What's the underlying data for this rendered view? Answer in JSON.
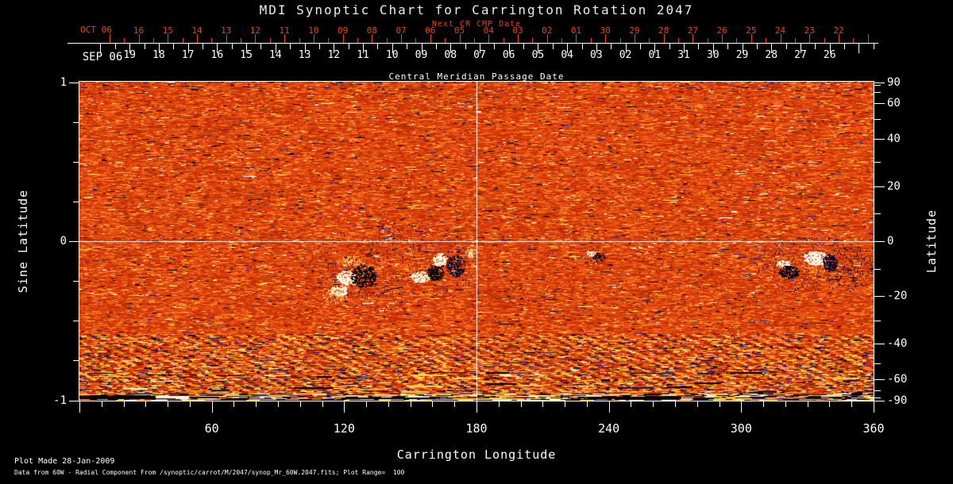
{
  "title": "MDI Synoptic Chart for Carrington Rotation 2047",
  "top_axis": {
    "next_cr_label": "Next CR CMP Date",
    "next_cr_month": "OCT 06",
    "next_cr_days": [
      "16",
      "15",
      "14",
      "13",
      "12",
      "11",
      "10",
      "09",
      "08",
      "07",
      "06",
      "05",
      "04",
      "03",
      "02",
      "01",
      "30",
      "29",
      "28",
      "27",
      "26",
      "25",
      "24",
      "23",
      "22"
    ],
    "cmp_month": "SEP 06",
    "cmp_days": [
      "19",
      "18",
      "17",
      "16",
      "15",
      "14",
      "13",
      "12",
      "11",
      "10",
      "09",
      "08",
      "07",
      "06",
      "05",
      "04",
      "03",
      "02",
      "01",
      "31",
      "30",
      "29",
      "28",
      "27",
      "26"
    ],
    "cmp_axis_label": "Central Meridian Passage Date"
  },
  "left_axis": {
    "label": "Sine Latitude",
    "ticks": [
      "1",
      "0",
      "-1"
    ]
  },
  "right_axis": {
    "label": "Latitude",
    "ticks": [
      "90",
      "60",
      "40",
      "20",
      "0",
      "-20",
      "-40",
      "-60",
      "-90"
    ]
  },
  "bottom_axis": {
    "label": "Carrington Longitude",
    "ticks": [
      "60",
      "120",
      "180",
      "240",
      "300",
      "360"
    ]
  },
  "footer": {
    "line1": "Plot Made 28-Jan-2009",
    "line2": "Data from 60W - Radial Component From /synoptic/carrot/M/2047/synop_Mr_60W.2047.fits; Plot Range=  100"
  },
  "colors": {
    "accent_red": "#e8430e",
    "axis_white": "#ffffff",
    "background": "#000000",
    "magnetogram_base_orange": "#e2470c",
    "positive_polarity": "#ffffff",
    "negative_polarity": "#000060"
  },
  "chart_data": {
    "type": "heatmap",
    "title": "MDI Synoptic Chart for Carrington Rotation 2047",
    "xlabel": "Carrington Longitude",
    "x_range": [
      0,
      360
    ],
    "x_ticks": [
      60,
      120,
      180,
      240,
      300,
      360
    ],
    "ylabel_left": "Sine Latitude",
    "y_range_sine": [
      -1,
      1
    ],
    "y_ticks_sine": [
      1,
      0,
      -1
    ],
    "ylabel_right": "Latitude",
    "y_ticks_latitude": [
      90,
      60,
      40,
      20,
      0,
      -20,
      -40,
      -60,
      -90
    ],
    "value_range_gauss": [
      -100,
      100
    ],
    "colormap": "orange-red background noise; white/yellow = positive magnetic polarity, dark blue/black = negative polarity",
    "reference_lines": {
      "longitude": 180,
      "sine_latitude": 0
    },
    "cmp_date_axis": {
      "month": "SEP 06",
      "days": [
        "19",
        "18",
        "17",
        "16",
        "15",
        "14",
        "13",
        "12",
        "11",
        "10",
        "09",
        "08",
        "07",
        "06",
        "05",
        "04",
        "03",
        "02",
        "01",
        "31",
        "30",
        "29",
        "28",
        "27",
        "26"
      ]
    },
    "next_cr_cmp_date_axis": {
      "month": "OCT 06",
      "days": [
        "16",
        "15",
        "14",
        "13",
        "12",
        "11",
        "10",
        "09",
        "08",
        "07",
        "06",
        "05",
        "04",
        "03",
        "02",
        "01",
        "30",
        "29",
        "28",
        "27",
        "26",
        "25",
        "24",
        "23",
        "22"
      ]
    },
    "active_regions": [
      {
        "longitude": 128,
        "latitude": -10,
        "polarity": "bipolar",
        "description": "large black negative core with white positive plage to its west"
      },
      {
        "longitude": 156,
        "latitude": -9,
        "polarity": "bipolar",
        "description": "white plage with black core pair"
      },
      {
        "longitude": 168,
        "latitude": -9,
        "polarity": "bipolar",
        "description": "white patch with dark blue/black region"
      },
      {
        "longitude": 233,
        "latitude": -5,
        "polarity": "bipolar",
        "description": "small white/black spot pair"
      },
      {
        "longitude": 330,
        "latitude": -9,
        "polarity": "bipolar",
        "description": "bright white plage with black/blue patches"
      }
    ],
    "notes": "strong salt-and-pepper noise band with diagonal striping near south pole (sine latitude < -0.8); white crosshair reference lines at longitude 180 and equator"
  }
}
